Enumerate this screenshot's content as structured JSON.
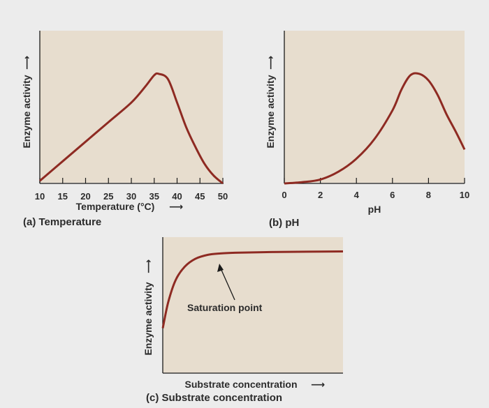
{
  "chart_data": [
    {
      "type": "line",
      "panel_label": "(a) Temperature",
      "xlabel": "Temperature (°C)",
      "ylabel": "Enzyme activity",
      "xlim": [
        10,
        50
      ],
      "ylim": [
        0,
        1
      ],
      "x_ticks": [
        "10",
        "15",
        "20",
        "25",
        "30",
        "35",
        "40",
        "45",
        "50"
      ],
      "x": [
        10,
        15,
        20,
        25,
        30,
        33,
        35,
        36,
        38,
        40,
        42,
        44,
        46,
        48,
        50
      ],
      "y": [
        0.02,
        0.17,
        0.32,
        0.47,
        0.62,
        0.74,
        0.83,
        0.84,
        0.8,
        0.62,
        0.43,
        0.28,
        0.15,
        0.06,
        0.0
      ]
    },
    {
      "type": "line",
      "panel_label": "(b) pH",
      "xlabel": "pH",
      "ylabel": "Enzyme activity",
      "xlim": [
        0,
        10
      ],
      "ylim": [
        0,
        1
      ],
      "x_ticks": [
        "0",
        "2",
        "4",
        "6",
        "8",
        "10"
      ],
      "x": [
        0,
        1,
        2,
        3,
        4,
        5,
        6,
        6.5,
        7,
        7.5,
        8,
        8.5,
        9,
        9.5,
        10
      ],
      "y": [
        0.0,
        0.01,
        0.03,
        0.09,
        0.19,
        0.34,
        0.56,
        0.72,
        0.83,
        0.84,
        0.79,
        0.68,
        0.53,
        0.4,
        0.26
      ]
    },
    {
      "type": "line",
      "panel_label": "(c) Substrate concentration",
      "xlabel": "Substrate concentration",
      "ylabel": "Enzyme activity",
      "xlim": [
        0,
        10
      ],
      "ylim": [
        0,
        1
      ],
      "annotation": "Saturation point",
      "x": [
        0,
        0.3,
        0.7,
        1.2,
        1.8,
        2.5,
        3.2,
        4,
        6,
        8,
        10
      ],
      "y": [
        0.33,
        0.52,
        0.68,
        0.78,
        0.84,
        0.87,
        0.88,
        0.885,
        0.89,
        0.893,
        0.895
      ]
    }
  ]
}
